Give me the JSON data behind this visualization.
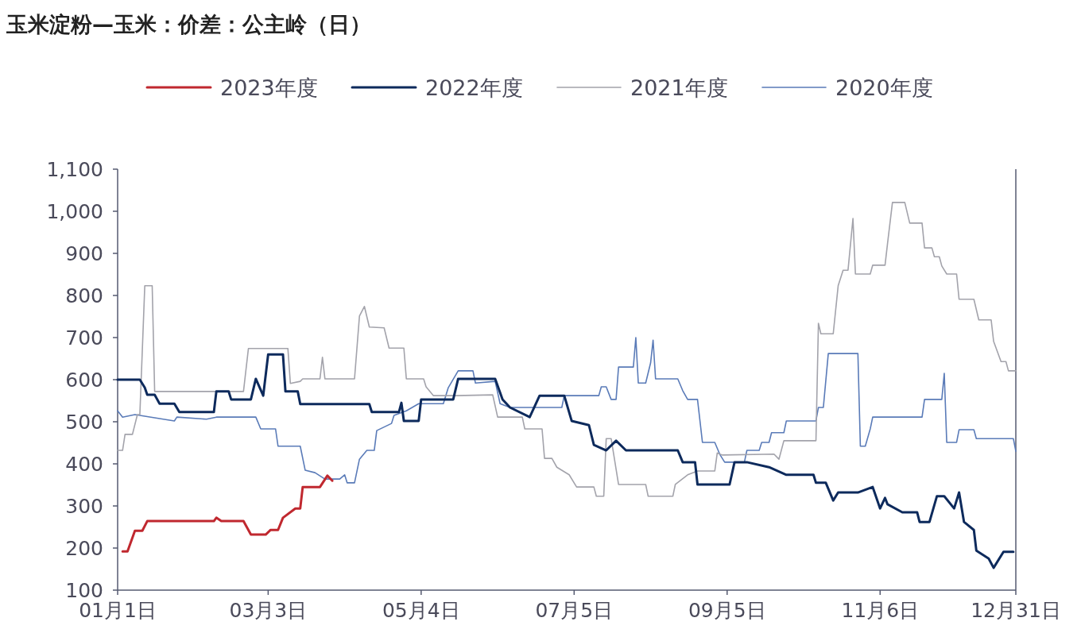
{
  "chart_data": {
    "type": "line",
    "title": "玉米淀粉—玉米：价差：公主岭（日）",
    "legend": "top",
    "grid": false,
    "xlim": [
      "--01-01",
      "--12-31"
    ],
    "xticks": [
      {
        "value": "--01-01",
        "label": "01月1日"
      },
      {
        "value": "--03-03",
        "label": "03月3日"
      },
      {
        "value": "--05-04",
        "label": "05月4日"
      },
      {
        "value": "--07-05",
        "label": "07月5日"
      },
      {
        "value": "--09-05",
        "label": "09月5日"
      },
      {
        "value": "--11-06",
        "label": "11月6日"
      },
      {
        "value": "--12-31",
        "label": "12月31日"
      }
    ],
    "ylim": [
      100,
      1100
    ],
    "yticks": [
      100,
      200,
      300,
      400,
      500,
      600,
      700,
      800,
      900,
      {
        "value": 1000,
        "label": "1,000"
      },
      {
        "value": 1100,
        "label": "1,100"
      }
    ],
    "series": [
      {
        "name": "2023年度",
        "color": "#c0282f",
        "x": [
          "--01-03",
          "--01-05",
          "--01-08",
          "--01-11",
          "--01-13",
          "--02-09",
          "--02-10",
          "--02-12",
          "--02-21",
          "--02-24",
          "--03-02",
          "--03-04",
          "--03-07",
          "--03-09",
          "--03-14",
          "--03-16",
          "--03-17",
          "--03-24",
          "--03-27",
          "--03-29"
        ],
        "values": [
          192,
          192,
          241,
          241,
          264,
          264,
          272,
          264,
          264,
          232,
          232,
          243,
          243,
          272,
          294,
          294,
          345,
          345,
          372,
          360
        ]
      },
      {
        "name": "2022年度",
        "color": "#0d2a5c",
        "x": [
          "--01-01",
          "--01-10",
          "--01-12",
          "--01-13",
          "--01-16",
          "--01-18",
          "--01-24",
          "--01-26",
          "--02-09",
          "--02-10",
          "--02-15",
          "--02-16",
          "--02-24",
          "--02-26",
          "--03-01",
          "--03-03",
          "--03-09",
          "--03-10",
          "--03-15",
          "--03-16",
          "--04-13",
          "--04-14",
          "--04-25",
          "--04-26",
          "--04-27",
          "--05-03",
          "--05-04",
          "--05-17",
          "--05-19",
          "--06-03",
          "--06-06",
          "--06-09",
          "--06-17",
          "--06-21",
          "--07-01",
          "--07-04",
          "--07-11",
          "--07-13",
          "--07-18",
          "--07-22",
          "--07-26",
          "--08-16",
          "--08-18",
          "--08-23",
          "--08-24",
          "--09-06",
          "--09-08",
          "--09-13",
          "--09-22",
          "--09-29",
          "--10-10",
          "--10-11",
          "--10-15",
          "--10-18",
          "--10-20",
          "--10-28",
          "--11-03",
          "--11-06",
          "--11-08",
          "--11-09",
          "--11-15",
          "--11-21",
          "--11-22",
          "--11-26",
          "--11-29",
          "--12-02",
          "--12-06",
          "--12-08",
          "--12-10",
          "--12-14",
          "--12-15",
          "--12-20",
          "--12-22",
          "--12-26",
          "--12-30"
        ],
        "values": [
          600,
          600,
          581,
          564,
          564,
          543,
          543,
          523,
          523,
          572,
          572,
          553,
          553,
          602,
          562,
          660,
          660,
          572,
          572,
          542,
          542,
          523,
          523,
          545,
          502,
          502,
          553,
          553,
          602,
          602,
          553,
          534,
          511,
          562,
          562,
          502,
          492,
          445,
          432,
          455,
          432,
          432,
          404,
          404,
          351,
          351,
          404,
          404,
          392,
          374,
          374,
          355,
          355,
          313,
          332,
          332,
          345,
          294,
          319,
          304,
          285,
          285,
          262,
          262,
          323,
          323,
          294,
          332,
          262,
          243,
          194,
          175,
          153,
          191,
          191
        ]
      },
      {
        "name": "2021年度",
        "color": "#a3a3ab",
        "x": [
          "--01-01",
          "--01-03",
          "--01-04",
          "--01-07",
          "--01-09",
          "--01-10",
          "--01-12",
          "--01-15",
          "--01-16",
          "--02-21",
          "--02-23",
          "--03-11",
          "--03-12",
          "--03-16",
          "--03-17",
          "--03-24",
          "--03-25",
          "--03-26",
          "--04-07",
          "--04-09",
          "--04-11",
          "--04-13",
          "--04-19",
          "--04-21",
          "--04-27",
          "--04-28",
          "--05-05",
          "--05-06",
          "--05-09",
          "--05-18",
          "--06-02",
          "--06-04",
          "--06-14",
          "--06-15",
          "--06-22",
          "--06-23",
          "--06-26",
          "--06-28",
          "--07-03",
          "--07-06",
          "--07-13",
          "--07-14",
          "--07-17",
          "--07-18",
          "--07-20",
          "--07-23",
          "--08-03",
          "--08-04",
          "--08-14",
          "--08-15",
          "--08-20",
          "--08-24",
          "--08-31",
          "--09-01",
          "--09-03",
          "--09-24",
          "--09-26",
          "--09-28",
          "--10-11",
          "--10-12",
          "--10-13",
          "--10-18",
          "--10-20",
          "--10-22",
          "--10-24",
          "--10-26",
          "--10-27",
          "--11-02",
          "--11-03",
          "--11-08",
          "--11-09",
          "--11-11",
          "--11-16",
          "--11-18",
          "--11-23",
          "--11-24",
          "--11-27",
          "--11-28",
          "--11-30",
          "--12-01",
          "--12-03",
          "--12-07",
          "--12-08",
          "--12-14",
          "--12-16",
          "--12-21",
          "--12-22",
          "--12-25",
          "--12-27",
          "--12-28",
          "--12-31"
        ],
        "values": [
          432,
          432,
          470,
          470,
          517,
          517,
          823,
          823,
          572,
          572,
          674,
          674,
          591,
          596,
          602,
          602,
          653,
          602,
          602,
          751,
          774,
          725,
          723,
          675,
          675,
          602,
          602,
          583,
          562,
          562,
          564,
          511,
          511,
          483,
          483,
          413,
          413,
          392,
          374,
          345,
          345,
          323,
          323,
          460,
          460,
          351,
          351,
          323,
          323,
          351,
          374,
          383,
          383,
          426,
          421,
          423,
          411,
          455,
          455,
          734,
          709,
          709,
          823,
          860,
          860,
          983,
          851,
          851,
          872,
          872,
          923,
          1021,
          1021,
          972,
          972,
          913,
          913,
          892,
          892,
          870,
          851,
          851,
          791,
          791,
          742,
          742,
          691,
          643,
          643,
          621,
          621
        ]
      },
      {
        "name": "2020年度",
        "color": "#5a7bb8",
        "x": [
          "--01-01",
          "--01-03",
          "--01-08",
          "--01-10",
          "--01-24",
          "--01-25",
          "--02-06",
          "--02-10",
          "--02-26",
          "--02-28",
          "--03-06",
          "--03-07",
          "--03-16",
          "--03-18",
          "--03-22",
          "--03-26",
          "--04-01",
          "--04-03",
          "--04-04",
          "--04-07",
          "--04-09",
          "--04-12",
          "--04-15",
          "--04-16",
          "--04-22",
          "--04-23",
          "--04-28",
          "--05-03",
          "--05-13",
          "--05-15",
          "--05-19",
          "--05-25",
          "--05-26",
          "--06-03",
          "--06-05",
          "--06-09",
          "--06-30",
          "--07-01",
          "--07-15",
          "--07-16",
          "--07-18",
          "--07-20",
          "--07-22",
          "--07-23",
          "--07-29",
          "--07-30",
          "--07-31",
          "--08-03",
          "--08-05",
          "--08-06",
          "--08-07",
          "--08-16",
          "--08-18",
          "--08-20",
          "--08-24",
          "--08-26",
          "--08-31",
          "--09-02",
          "--09-04",
          "--09-12",
          "--09-13",
          "--09-18",
          "--09-19",
          "--09-22",
          "--09-23",
          "--09-28",
          "--09-29",
          "--10-11",
          "--10-12",
          "--10-14",
          "--10-16",
          "--10-28",
          "--10-29",
          "--10-31",
          "--11-02",
          "--11-03",
          "--11-23",
          "--11-24",
          "--12-01",
          "--12-02",
          "--12-03",
          "--12-07",
          "--12-08",
          "--12-14",
          "--12-15",
          "--12-30",
          "--12-31"
        ],
        "values": [
          526,
          511,
          517,
          515,
          502,
          511,
          506,
          511,
          511,
          483,
          483,
          442,
          442,
          385,
          379,
          364,
          364,
          374,
          355,
          355,
          411,
          432,
          432,
          479,
          496,
          515,
          526,
          543,
          543,
          581,
          621,
          621,
          592,
          596,
          543,
          534,
          534,
          562,
          562,
          583,
          583,
          553,
          553,
          630,
          630,
          700,
          592,
          592,
          640,
          694,
          602,
          602,
          574,
          553,
          553,
          451,
          451,
          423,
          404,
          404,
          432,
          432,
          451,
          451,
          474,
          474,
          502,
          502,
          534,
          534,
          662,
          662,
          442,
          442,
          483,
          511,
          511,
          553,
          553,
          615,
          451,
          451,
          481,
          481,
          460,
          460,
          430
        ]
      }
    ]
  }
}
